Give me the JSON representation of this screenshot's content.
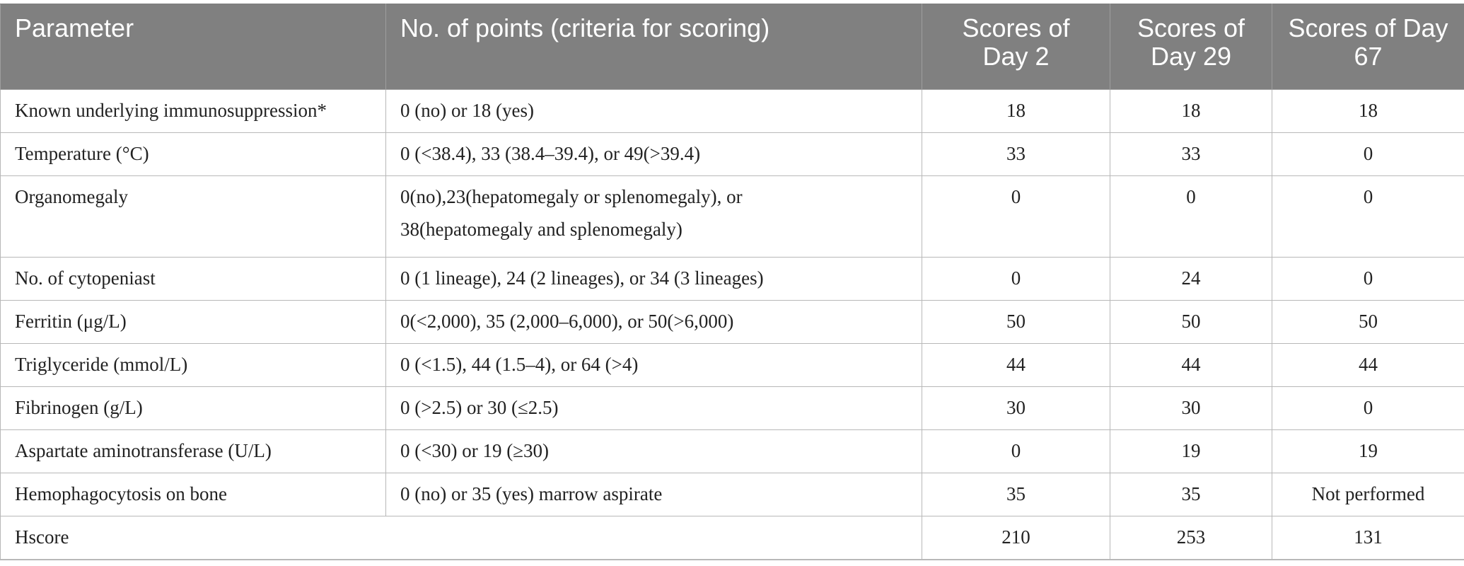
{
  "header": {
    "parameter": "Parameter",
    "criteria": "No. of points (criteria for scoring)",
    "day2": "Scores of Day 2",
    "day29": "Scores of Day 29",
    "day67": "Scores of Day 67"
  },
  "rows": [
    {
      "parameter": "Known underlying immunosuppression*",
      "criteria": "0 (no) or 18 (yes)",
      "day2": "18",
      "day29": "18",
      "day67": "18"
    },
    {
      "parameter": "Temperature (°C)",
      "criteria": "0 (<38.4), 33 (38.4–39.4), or 49(>39.4)",
      "day2": "33",
      "day29": "33",
      "day67": "0"
    },
    {
      "parameter": "Organomegaly",
      "criteria_line1": "0(no),23(hepatomegaly or splenomegaly), or",
      "criteria_line2": "38(hepatomegaly and splenomegaly)",
      "day2": "0",
      "day29": "0",
      "day67": "0"
    },
    {
      "parameter": "No. of cytopeniast",
      "criteria": "0 (1 lineage), 24 (2 lineages), or 34 (3 lineages)",
      "day2": "0",
      "day29": "24",
      "day67": "0"
    },
    {
      "parameter": "Ferritin (μg/L)",
      "criteria": "0(<2,000), 35 (2,000–6,000), or 50(>6,000)",
      "day2": "50",
      "day29": "50",
      "day67": "50"
    },
    {
      "parameter": "Triglyceride (mmol/L)",
      "criteria": "0 (<1.5), 44 (1.5–4), or 64 (>4)",
      "day2": "44",
      "day29": "44",
      "day67": "44"
    },
    {
      "parameter": "Fibrinogen (g/L)",
      "criteria": "0 (>2.5) or 30 (≤2.5)",
      "day2": "30",
      "day29": "30",
      "day67": "0"
    },
    {
      "parameter": "Aspartate aminotransferase (U/L)",
      "criteria": "0 (<30) or 19 (≥30)",
      "day2": "0",
      "day29": "19",
      "day67": "19"
    },
    {
      "parameter": "Hemophagocytosis on bone",
      "criteria": "0 (no) or 35 (yes) marrow aspirate",
      "day2": "35",
      "day29": "35",
      "day67": "Not performed"
    }
  ],
  "total": {
    "label": "Hscore",
    "day2": "210",
    "day29": "253",
    "day67": "131"
  }
}
